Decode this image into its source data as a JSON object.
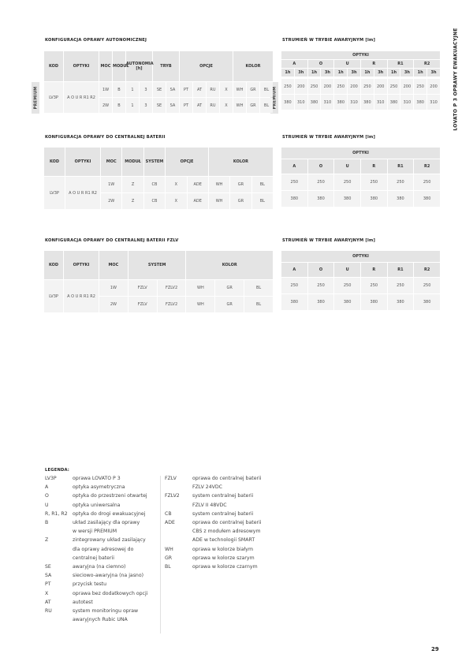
{
  "side_label": "LOVATO P 3   OPRAWY EWAKUACYJNE",
  "page_number": "29",
  "autonomous": {
    "title": "KONFIGURACJA OPRAWY AUTONOMICZNEJ",
    "headers": [
      "KOD",
      "OPTYKI",
      "MOC",
      "MODUŁ",
      "AUTONOMIA [h]",
      "TRYB",
      "OPCJE",
      "KOLOR"
    ],
    "kod": "LV3P",
    "optyki": "A O U R R1 R2",
    "badge": "PREMIUM",
    "rows": [
      [
        "1W",
        "B",
        "1",
        "3",
        "SE",
        "SA",
        "PT",
        "AT",
        "RU",
        "X",
        "WH",
        "GR",
        "BL"
      ],
      [
        "2W",
        "B",
        "1",
        "3",
        "SE",
        "SA",
        "PT",
        "AT",
        "RU",
        "X",
        "WH",
        "GR",
        "BL"
      ]
    ]
  },
  "flux_autonomous": {
    "title": "STRUMIEŃ W TRYBIE AWARYJNYM [lm]",
    "optyki": "OPTYKI",
    "badge": "PREMIUM",
    "groups": [
      "A",
      "O",
      "U",
      "R",
      "R1",
      "R2"
    ],
    "durations": [
      "1h",
      "3h"
    ],
    "rows": [
      [
        "250",
        "200",
        "250",
        "200",
        "250",
        "200",
        "250",
        "200",
        "250",
        "200",
        "250",
        "200"
      ],
      [
        "380",
        "310",
        "380",
        "310",
        "380",
        "310",
        "380",
        "310",
        "380",
        "310",
        "380",
        "310"
      ]
    ]
  },
  "central": {
    "title": "KONFIGURACJA OPRAWY DO CENTRALNEJ BATERII",
    "headers": [
      "KOD",
      "OPTYKI",
      "MOC",
      "MODUŁ",
      "SYSTEM",
      "OPCJE",
      "KOLOR"
    ],
    "kod": "LV3P",
    "optyki": "A O U R R1 R2",
    "rows": [
      [
        "1W",
        "Z",
        "CB",
        "X",
        "ADE",
        "WH",
        "GR",
        "BL"
      ],
      [
        "2W",
        "Z",
        "CB",
        "X",
        "ADE",
        "WH",
        "GR",
        "BL"
      ]
    ]
  },
  "flux_central": {
    "title": "STRUMIEŃ W TRYBIE AWARYJNYM [lm]",
    "optyki": "OPTYKI",
    "groups": [
      "A",
      "O",
      "U",
      "R",
      "R1",
      "R2"
    ],
    "rows": [
      [
        "250",
        "250",
        "250",
        "250",
        "250",
        "250"
      ],
      [
        "380",
        "380",
        "380",
        "380",
        "380",
        "380"
      ]
    ]
  },
  "fzlv": {
    "title": "KONFIGURACJA OPRAWY DO CENTRALNEJ BATERII FZLV",
    "headers": [
      "KOD",
      "OPTYKI",
      "MOC",
      "SYSTEM",
      "KOLOR"
    ],
    "kod": "LV3P",
    "optyki": "A O U R R1 R2",
    "rows": [
      [
        "1W",
        "FZLV",
        "FZLV2",
        "WH",
        "GR",
        "BL"
      ],
      [
        "2W",
        "FZLV",
        "FZLV2",
        "WH",
        "GR",
        "BL"
      ]
    ]
  },
  "flux_fzlv": {
    "title": "STRUMIEŃ W TRYBIE AWARYJNYM [lm]",
    "optyki": "OPTYKI",
    "groups": [
      "A",
      "O",
      "U",
      "R",
      "R1",
      "R2"
    ],
    "rows": [
      [
        "250",
        "250",
        "250",
        "250",
        "250",
        "250"
      ],
      [
        "380",
        "380",
        "380",
        "380",
        "380",
        "380"
      ]
    ]
  },
  "legend": {
    "title": "LEGENDA:",
    "left": [
      {
        "code": "LV3P",
        "desc": "oprawa LOVATO P 3"
      },
      {
        "code": "A",
        "desc": "optyka asymetryczna"
      },
      {
        "code": "O",
        "desc": "optyka do przestrzeni otwartej"
      },
      {
        "code": "U",
        "desc": "optyka uniwersalna"
      },
      {
        "code": "R, R1, R2",
        "desc": "optyka do drogi ewakuacyjnej"
      },
      {
        "code": "B",
        "desc": "układ zasilający dla oprawy"
      },
      {
        "code": "",
        "desc": "w wersji PREMIUM"
      },
      {
        "code": "Z",
        "desc": "zintegrowany układ zasilający"
      },
      {
        "code": "",
        "desc": "dla oprawy adresowej do"
      },
      {
        "code": "",
        "desc": "centralnej baterii"
      },
      {
        "code": "SE",
        "desc": "awaryjna (na ciemno)"
      },
      {
        "code": "SA",
        "desc": "sieciowo-awaryjna (na jasno)"
      },
      {
        "code": "PT",
        "desc": "przycisk testu"
      },
      {
        "code": "X",
        "desc": "oprawa bez dodatkowych opcji"
      },
      {
        "code": "AT",
        "desc": "autotest"
      },
      {
        "code": "RU",
        "desc": "system monitoringu opraw"
      },
      {
        "code": "",
        "desc": "awaryjnych Rubic UNA"
      }
    ],
    "right": [
      {
        "code": "FZLV",
        "desc": "oprawa do centralnej baterii"
      },
      {
        "code": "",
        "desc": "FZLV 24VDC"
      },
      {
        "code": "FZLV2",
        "desc": "system centralnej baterii"
      },
      {
        "code": "",
        "desc": "FZLV II 48VDC"
      },
      {
        "code": "CB",
        "desc": "system centralnej baterii"
      },
      {
        "code": "ADE",
        "desc": "oprawa do centralnej baterii"
      },
      {
        "code": "",
        "desc": "CBS z modułem adresowym"
      },
      {
        "code": "",
        "desc": "ADE w technologii SMART"
      },
      {
        "code": "WH",
        "desc": "oprawa w kolorze białym"
      },
      {
        "code": "GR",
        "desc": "oprawa w kolorze szarym"
      },
      {
        "code": "BL",
        "desc": "oprawa w kolorze czarnym"
      }
    ]
  }
}
